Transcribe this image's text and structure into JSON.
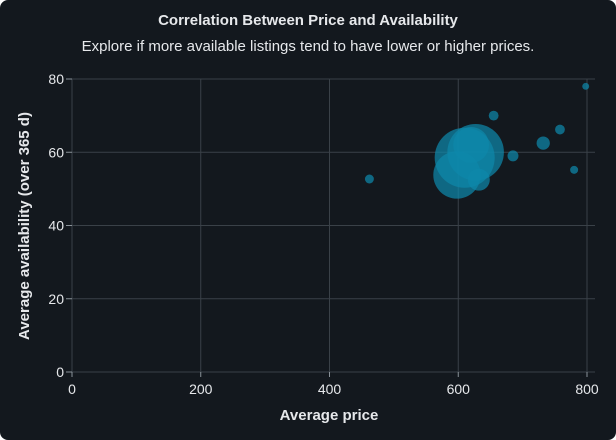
{
  "chart_data": {
    "type": "scatter",
    "title": "Correlation Between Price and Availability",
    "subtitle": "Explore if more available listings tend to have lower or higher prices.",
    "xlabel": "Average price",
    "ylabel": "Average availability (over 365 d)",
    "xlim": [
      0,
      800
    ],
    "ylim": [
      0,
      80
    ],
    "xticks": [
      "0",
      "200",
      "400",
      "600",
      "800"
    ],
    "yticks": [
      "0",
      "20",
      "40",
      "60",
      "80"
    ],
    "grid": true,
    "legend": "none",
    "colors": {
      "background": "#13181e",
      "point": "#0e88ab",
      "grid": "#3a4148",
      "text": "#e6e8eb"
    },
    "points": [
      {
        "x": 462,
        "y": 52.7,
        "size": 1
      },
      {
        "x": 598,
        "y": 53.8,
        "size": 28
      },
      {
        "x": 610,
        "y": 58.5,
        "size": 45
      },
      {
        "x": 620,
        "y": 62.0,
        "size": 16
      },
      {
        "x": 627,
        "y": 60.0,
        "size": 40
      },
      {
        "x": 632,
        "y": 52.5,
        "size": 6
      },
      {
        "x": 655,
        "y": 70.0,
        "size": 1.2
      },
      {
        "x": 685,
        "y": 59.0,
        "size": 1.5
      },
      {
        "x": 732,
        "y": 62.5,
        "size": 2.2
      },
      {
        "x": 758,
        "y": 66.2,
        "size": 1.2
      },
      {
        "x": 780,
        "y": 55.2,
        "size": 0.8
      },
      {
        "x": 798,
        "y": 78.0,
        "size": 0.6
      }
    ]
  }
}
